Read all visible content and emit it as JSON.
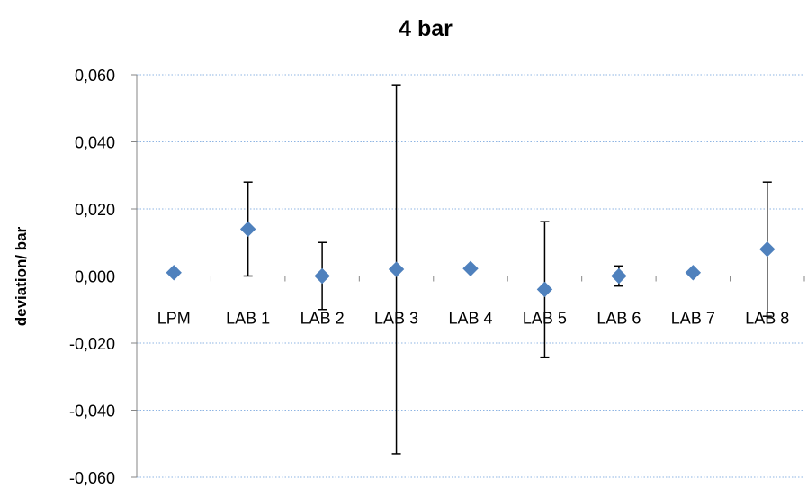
{
  "chart_data": {
    "type": "scatter",
    "title": "4 bar",
    "xlabel": "",
    "ylabel": "deviation/ bar",
    "ylim": [
      -0.06,
      0.06
    ],
    "y_ticks": [
      0.06,
      0.04,
      0.02,
      0.0,
      -0.02,
      -0.04,
      -0.06
    ],
    "y_tick_labels": [
      "0,060",
      "0,040",
      "0,020",
      "0,000",
      "-0,020",
      "-0,040",
      "-0,060"
    ],
    "categories": [
      "LPM",
      "LAB 1",
      "LAB 2",
      "LAB 3",
      "LAB 4",
      "LAB 5",
      "LAB 6",
      "LAB 7",
      "LAB 8"
    ],
    "grid": true,
    "legend": "none",
    "marker": "diamond",
    "series": [
      {
        "values": [
          0.001,
          0.014,
          0.0,
          0.002,
          0.0022,
          -0.004,
          0.0,
          0.001,
          0.008
        ],
        "error": [
          null,
          0.014,
          0.01,
          0.055,
          null,
          0.0202,
          0.003,
          null,
          0.02
        ],
        "color": "#4f81bd"
      }
    ]
  },
  "colors": {
    "marker": "#4f81bd",
    "gridline": "#8eb4e3",
    "axis": "#868686",
    "errorbar": "#000000"
  }
}
